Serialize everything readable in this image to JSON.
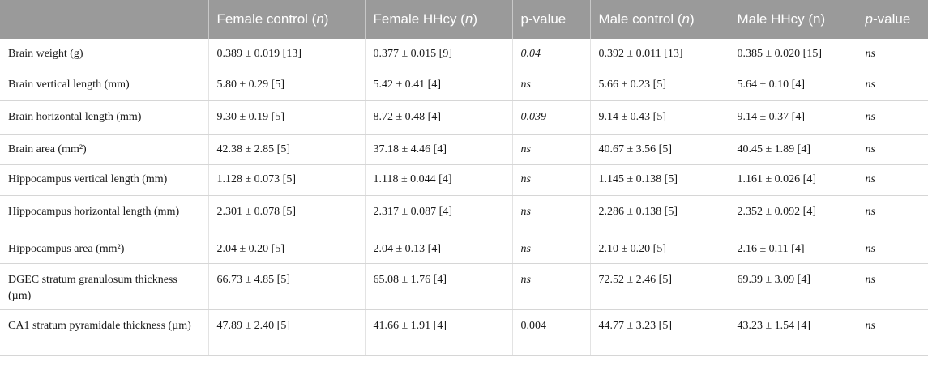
{
  "header": {
    "col0": "",
    "col1_text": "Female control (",
    "col1_n": "n",
    "col1_close": ")",
    "col2_text": "Female HHcy (",
    "col2_n": "n",
    "col2_close": ")",
    "col3": "p-value",
    "col4_text": "Male control (",
    "col4_n": "n",
    "col4_close": ")",
    "col5": "Male HHcy (n)",
    "col6_p": "p",
    "col6_rest": "-value"
  },
  "rows": [
    {
      "label": "Brain weight (g)",
      "fc": "0.389 ± 0.019 [13]",
      "fh": "0.377 ± 0.015 [9]",
      "fp": "0.04",
      "mc": "0.392 ± 0.011 [13]",
      "mh": "0.385 ± 0.020 [15]",
      "mp": "ns"
    },
    {
      "label": "Brain vertical length (mm)",
      "fc": "5.80 ± 0.29 [5]",
      "fh": "5.42 ± 0.41 [4]",
      "fp": "ns",
      "mc": "5.66 ± 0.23 [5]",
      "mh": "5.64 ± 0.10 [4]",
      "mp": "ns"
    },
    {
      "label": "Brain horizontal length (mm)",
      "fc": "9.30 ± 0.19 [5]",
      "fh": "8.72 ± 0.48 [4]",
      "fp": "0.039",
      "mc": "9.14 ± 0.43 [5]",
      "mh": "9.14 ± 0.37 [4]",
      "mp": "ns"
    },
    {
      "label": "Brain area (mm²)",
      "fc": "42.38 ± 2.85 [5]",
      "fh": "37.18 ± 4.46 [4]",
      "fp": "ns",
      "mc": "40.67 ± 3.56 [5]",
      "mh": "40.45 ± 1.89 [4]",
      "mp": "ns"
    },
    {
      "label": "Hippocampus vertical length (mm)",
      "fc": "1.128 ± 0.073 [5]",
      "fh": "1.118 ± 0.044 [4]",
      "fp": "ns",
      "mc": "1.145 ± 0.138 [5]",
      "mh": "1.161 ± 0.026 [4]",
      "mp": "ns"
    },
    {
      "label": "Hippocampus horizontal length (mm)",
      "fc": "2.301 ± 0.078 [5]",
      "fh": "2.317 ± 0.087 [4]",
      "fp": "ns",
      "mc": "2.286 ± 0.138 [5]",
      "mh": "2.352 ± 0.092 [4]",
      "mp": "ns"
    },
    {
      "label": "Hippocampus area (mm²)",
      "fc": "2.04 ± 0.20 [5]",
      "fh": "2.04 ± 0.13 [4]",
      "fp": "ns",
      "mc": "2.10 ± 0.20 [5]",
      "mh": "2.16 ± 0.11 [4]",
      "mp": "ns"
    },
    {
      "label": "DGEC stratum granulosum thickness (µm)",
      "fc": "66.73 ± 4.85 [5]",
      "fh": "65.08 ± 1.76 [4]",
      "fp": "ns",
      "mc": "72.52 ± 2.46 [5]",
      "mh": "69.39 ± 3.09 [4]",
      "mp": "ns"
    },
    {
      "label": "CA1 stratum pyramidale thickness (µm)",
      "fc": "47.89 ± 2.40 [5]",
      "fh": "41.66 ± 1.91 [4]",
      "fp": "0.004",
      "mc": "44.77 ± 3.23 [5]",
      "mh": "43.23 ± 1.54 [4]",
      "mp": "ns"
    }
  ]
}
